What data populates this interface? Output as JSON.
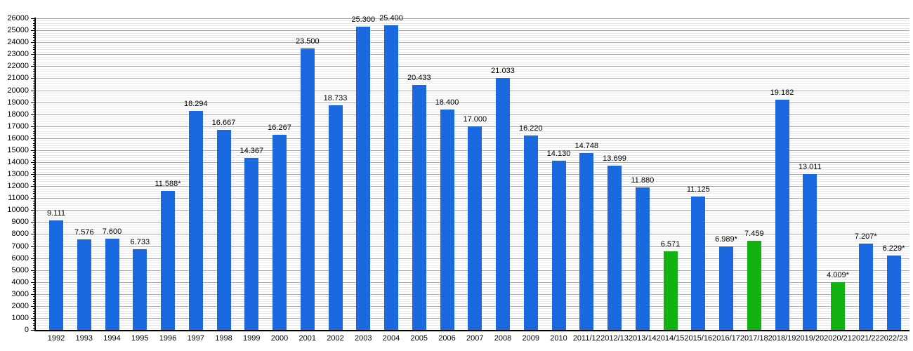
{
  "chart_data": {
    "type": "bar",
    "title": "",
    "xlabel": "",
    "ylabel": "",
    "legend_position": "none",
    "grid": true,
    "ylim": [
      0,
      26000
    ],
    "y_major_step": 1000,
    "y_minor_step": 200,
    "categories": [
      "1992",
      "1993",
      "1994",
      "1995",
      "1996",
      "1997",
      "1998",
      "1999",
      "2000",
      "2001",
      "2002",
      "2003",
      "2004",
      "2005",
      "2006",
      "2007",
      "2008",
      "2009",
      "2010",
      "2011/12",
      "2012/13",
      "2013/14",
      "2014/15",
      "2015/16",
      "2016/17",
      "2017/18",
      "2018/19",
      "2019/20",
      "2020/21",
      "2021/22",
      "2022/23"
    ],
    "values": [
      9111,
      7576,
      7600,
      6733,
      11588,
      18294,
      16667,
      14367,
      16267,
      23500,
      18733,
      25300,
      25400,
      20433,
      18400,
      17000,
      21033,
      16220,
      14130,
      14748,
      13699,
      11880,
      6571,
      11125,
      6989,
      7459,
      19182,
      13011,
      4009,
      7207,
      6229
    ],
    "bar_labels": [
      "9.111",
      "7.576",
      "7.600",
      "6.733",
      "11.588*",
      "18.294",
      "16.667",
      "14.367",
      "16.267",
      "23.500",
      "18.733",
      "25.300",
      "25.400",
      "20.433",
      "18.400",
      "17.000",
      "21.033",
      "16.220",
      "14.130",
      "14.748",
      "13.699",
      "11.880",
      "6.571",
      "11.125",
      "6.989*",
      "7.459",
      "19.182",
      "13.011",
      "4.009*",
      "7.207*",
      "6.229*"
    ],
    "highlighted_indices": [
      22,
      25,
      28
    ],
    "colors": {
      "bar_default": "#1b69de",
      "bar_highlight": "#12b212",
      "grid_major": "#ababab",
      "grid_minor": "#e8e8e8",
      "axis": "#000000"
    }
  }
}
